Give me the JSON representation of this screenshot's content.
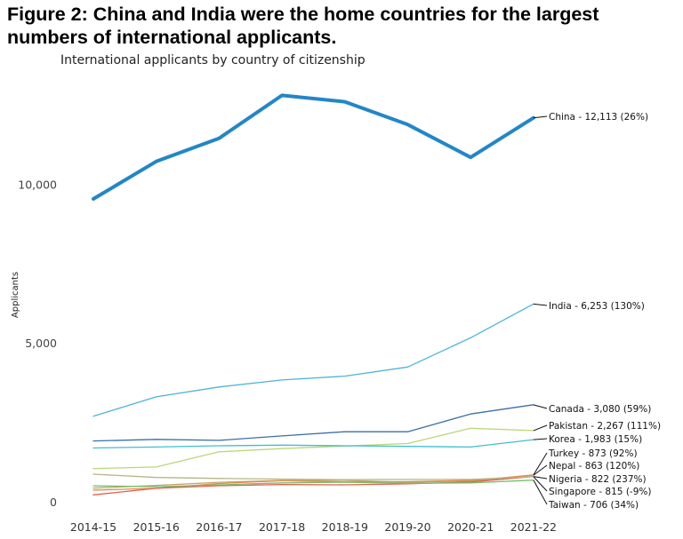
{
  "figure": {
    "title": "Figure 2: China and India were the home countries for the largest numbers of international applicants."
  },
  "chart_data": {
    "type": "line",
    "title": "International applicants by country of citizenship",
    "xlabel": "",
    "ylabel": "Applicants",
    "ylim": [
      0,
      13000
    ],
    "yticks": [
      0,
      5000,
      10000
    ],
    "ytick_labels": [
      "0",
      "5,000",
      "10,000"
    ],
    "grid": false,
    "legend": "end-of-line labels",
    "categories": [
      "2014-15",
      "2015-16",
      "2016-17",
      "2017-18",
      "2018-19",
      "2019-20",
      "2020-21",
      "2021-22"
    ],
    "series": [
      {
        "name": "China",
        "label": "China - 12,113 (26%)",
        "color": "#2286c8",
        "emphasis": true,
        "values": [
          9560,
          10740,
          11470,
          12820,
          12620,
          11900,
          10870,
          12113
        ]
      },
      {
        "name": "India",
        "label": "India - 6,253 (130%)",
        "color": "#4fb3d8",
        "values": [
          2720,
          3330,
          3640,
          3860,
          3980,
          4270,
          5190,
          6253
        ]
      },
      {
        "name": "Canada",
        "label": "Canada - 3,080 (59%)",
        "color": "#3a6fa8",
        "values": [
          1940,
          1990,
          1960,
          2100,
          2230,
          2230,
          2790,
          3080
        ]
      },
      {
        "name": "Pakistan",
        "label": "Pakistan - 2,267 (111%)",
        "color": "#b9d878",
        "values": [
          1070,
          1120,
          1600,
          1700,
          1780,
          1860,
          2340,
          2267
        ]
      },
      {
        "name": "Korea",
        "label": "Korea - 1,983 (15%)",
        "color": "#42bdd0",
        "values": [
          1720,
          1750,
          1790,
          1810,
          1790,
          1770,
          1750,
          1983
        ]
      },
      {
        "name": "Turkey",
        "label": "Turkey - 873 (92%)",
        "color": "#c9a36a",
        "values": [
          455,
          540,
          640,
          700,
          700,
          640,
          680,
          873
        ]
      },
      {
        "name": "Nepal",
        "label": "Nepal - 863 (120%)",
        "color": "#e38a4a",
        "values": [
          392,
          450,
          600,
          690,
          650,
          660,
          700,
          863
        ]
      },
      {
        "name": "Nigeria",
        "label": "Nigeria - 822 (237%)",
        "color": "#e05d4d",
        "values": [
          244,
          450,
          530,
          570,
          560,
          590,
          650,
          822
        ]
      },
      {
        "name": "Singapore",
        "label": "Singapore - 815 (-9%)",
        "color": "#b5b58a",
        "values": [
          895,
          790,
          760,
          740,
          720,
          730,
          730,
          815
        ]
      },
      {
        "name": "Taiwan",
        "label": "Taiwan - 706 (34%)",
        "color": "#74c06e",
        "values": [
          527,
          500,
          560,
          620,
          640,
          610,
          620,
          706
        ]
      }
    ]
  }
}
